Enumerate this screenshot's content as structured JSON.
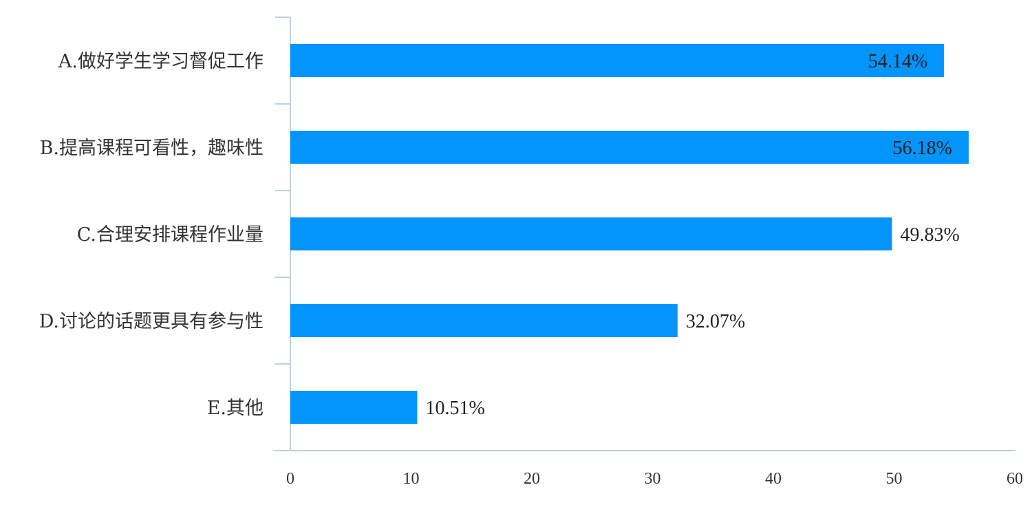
{
  "chart_data": {
    "type": "bar",
    "orientation": "horizontal",
    "categories": [
      "A.做好学生学习督促工作",
      "B.提高课程可看性，趣味性",
      "C.合理安排课程作业量",
      "D.讨论的话题更具有参与性",
      "E.其他"
    ],
    "values": [
      54.14,
      56.18,
      49.83,
      32.07,
      10.51
    ],
    "data_labels": [
      "54.14%",
      "56.18%",
      "49.83%",
      "32.07%",
      "10.51%"
    ],
    "x_ticks": [
      "0",
      "10",
      "20",
      "30",
      "40",
      "50",
      "60"
    ],
    "xlim": [
      0,
      60
    ],
    "grid": false,
    "bar_color": "#0394fc",
    "axis_color": "#bdd0e2"
  }
}
